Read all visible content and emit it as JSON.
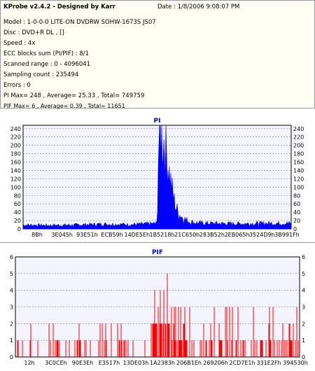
{
  "header": {
    "app_title": "KProbe v2.4.2 - Designed by Karr",
    "date": "Date : 1/8/2006 9:08:07 PM",
    "lines": [
      "Model : 1-0-0-0 LITE-ON DVDRW SOHW-1673S JS07",
      "Disc : DVD+R DL ,  []",
      "Speed : 4x",
      "ECC blocks sum (PI/PIF) : 8/1",
      "Scanned range : 0 - 4096041",
      "Sampling count : 235494",
      "Errors : 0",
      "PI Max= 248 , Average= 25.33 , Total= 749759",
      "PIF Max= 6 , Average= 0.39 , Total= 11651"
    ]
  },
  "colors": {
    "pi": "#0000ff",
    "pif": "#ff0000",
    "plot_bg": "#f4f4ff",
    "grid": "#7c7c9c",
    "title": "#0000cc"
  },
  "chart_data": [
    {
      "type": "area",
      "title": "PI",
      "ylim": [
        0,
        248
      ],
      "yticks": [
        0,
        20,
        40,
        60,
        80,
        100,
        120,
        140,
        160,
        180,
        200,
        220,
        240
      ],
      "xtick_labels": [
        "8Bh",
        "3E045h",
        "93E51h",
        "ECB59h",
        "14DE5Eh",
        "1B5218h",
        "21C650h",
        "283B52h",
        "2EB065h",
        "3524D9h",
        "3B991Fh"
      ],
      "grid": "dashed horizontal",
      "series": [
        {
          "color": "#0000ff",
          "x_fraction": [
            0,
            0.1,
            0.2,
            0.3,
            0.4,
            0.48,
            0.5,
            0.505,
            0.51,
            0.515,
            0.52,
            0.53,
            0.54,
            0.55,
            0.56,
            0.57,
            0.58,
            0.6,
            0.62,
            0.65,
            0.7,
            0.8,
            0.9,
            1.0
          ],
          "values": [
            10,
            9,
            10,
            12,
            11,
            13,
            14,
            210,
            238,
            248,
            235,
            205,
            165,
            120,
            80,
            55,
            38,
            26,
            18,
            15,
            14,
            13,
            14,
            14
          ]
        }
      ]
    },
    {
      "type": "bar",
      "title": "PIF",
      "ylim": [
        0,
        6
      ],
      "yticks": [
        0,
        1,
        2,
        3,
        4,
        5,
        6
      ],
      "xtick_labels": [
        "12h",
        "3C0CEh",
        "90E3Eh",
        "E3517h",
        "13DE03h",
        "1A2383h",
        "206B1Eh",
        "269206h",
        "2CD7E1h",
        "331E2Fh",
        "394530h"
      ],
      "grid": "dashed horizontal",
      "series": [
        {
          "color": "#ff0000",
          "segments": [
            {
              "from": 0.0,
              "to": 0.48,
              "base": 1,
              "max": 2
            },
            {
              "from": 0.48,
              "to": 0.55,
              "base": 2,
              "max": 6
            },
            {
              "from": 0.55,
              "to": 0.62,
              "base": 1,
              "max": 4
            },
            {
              "from": 0.62,
              "to": 1.0,
              "base": 1,
              "max": 3
            }
          ]
        }
      ]
    }
  ]
}
